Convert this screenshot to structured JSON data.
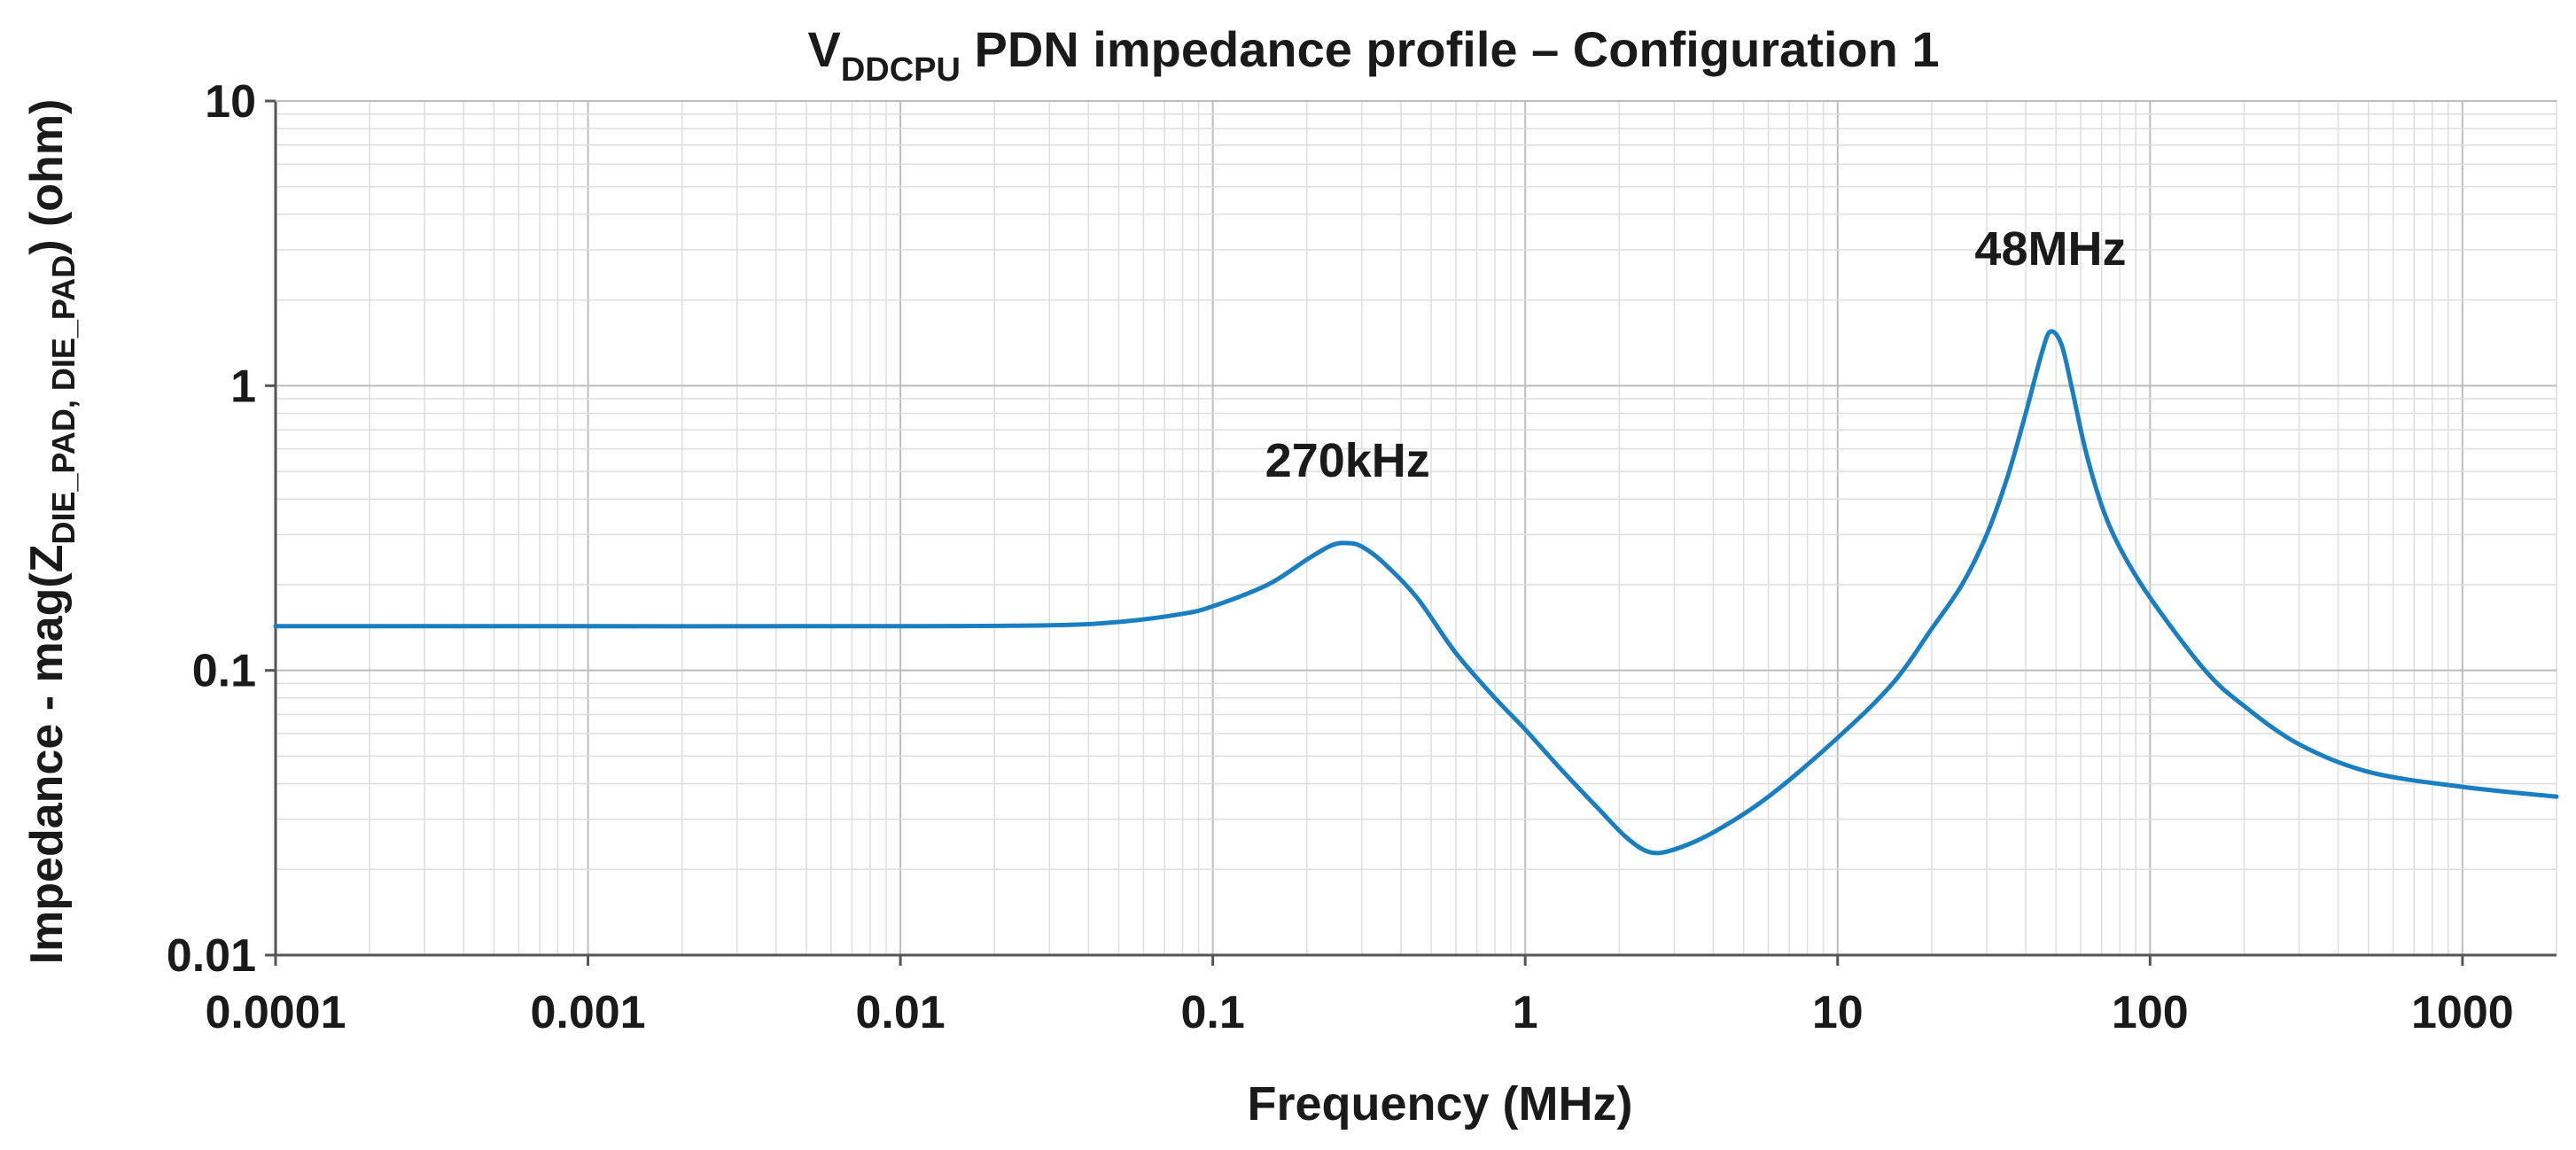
{
  "chart_data": {
    "type": "line",
    "title": {
      "prefix": "V",
      "subscript": "DDCPU",
      "suffix": " PDN impedance profile – Configuration 1"
    },
    "xlabel": "Frequency (MHz)",
    "ylabel": {
      "prefix": "Impedance - mag(Z",
      "subscript": "DIE_PAD, DIE_PAD",
      "suffix": ") (ohm)"
    },
    "x_scale": "log",
    "y_scale": "log",
    "xlim": [
      0.0001,
      2000
    ],
    "ylim": [
      0.01,
      10
    ],
    "grid": true,
    "x_ticks": [
      {
        "value": 0.0001,
        "label": "0.0001"
      },
      {
        "value": 0.001,
        "label": "0.001"
      },
      {
        "value": 0.01,
        "label": "0.01"
      },
      {
        "value": 0.1,
        "label": "0.1"
      },
      {
        "value": 1,
        "label": "1"
      },
      {
        "value": 10,
        "label": "10"
      },
      {
        "value": 100,
        "label": "100"
      },
      {
        "value": 1000,
        "label": "1000"
      }
    ],
    "y_ticks": [
      {
        "value": 0.01,
        "label": "0.01"
      },
      {
        "value": 0.1,
        "label": "0.1"
      },
      {
        "value": 1,
        "label": "1"
      },
      {
        "value": 10,
        "label": "10"
      }
    ],
    "series": [
      {
        "color": "#1a7fc1",
        "points": [
          [
            0.0001,
            0.143
          ],
          [
            0.001,
            0.143
          ],
          [
            0.01,
            0.143
          ],
          [
            0.03,
            0.144
          ],
          [
            0.05,
            0.148
          ],
          [
            0.08,
            0.158
          ],
          [
            0.1,
            0.168
          ],
          [
            0.15,
            0.2
          ],
          [
            0.2,
            0.245
          ],
          [
            0.24,
            0.275
          ],
          [
            0.27,
            0.28
          ],
          [
            0.3,
            0.272
          ],
          [
            0.35,
            0.24
          ],
          [
            0.45,
            0.18
          ],
          [
            0.6,
            0.115
          ],
          [
            0.8,
            0.08
          ],
          [
            1,
            0.062
          ],
          [
            1.3,
            0.045
          ],
          [
            1.7,
            0.033
          ],
          [
            2.1,
            0.026
          ],
          [
            2.5,
            0.023
          ],
          [
            3,
            0.0235
          ],
          [
            4,
            0.027
          ],
          [
            6,
            0.036
          ],
          [
            10,
            0.058
          ],
          [
            15,
            0.09
          ],
          [
            20,
            0.14
          ],
          [
            25,
            0.2
          ],
          [
            30,
            0.3
          ],
          [
            35,
            0.48
          ],
          [
            40,
            0.8
          ],
          [
            45,
            1.3
          ],
          [
            48,
            1.55
          ],
          [
            52,
            1.4
          ],
          [
            56,
            1.0
          ],
          [
            62,
            0.6
          ],
          [
            70,
            0.38
          ],
          [
            80,
            0.27
          ],
          [
            100,
            0.18
          ],
          [
            150,
            0.1
          ],
          [
            200,
            0.075
          ],
          [
            300,
            0.055
          ],
          [
            500,
            0.044
          ],
          [
            1000,
            0.039
          ],
          [
            2000,
            0.036
          ]
        ]
      }
    ],
    "annotations": [
      {
        "text": "270kHz",
        "x": 0.27,
        "y": 0.28
      },
      {
        "text": "48MHz",
        "x": 48,
        "y": 1.55
      }
    ]
  }
}
